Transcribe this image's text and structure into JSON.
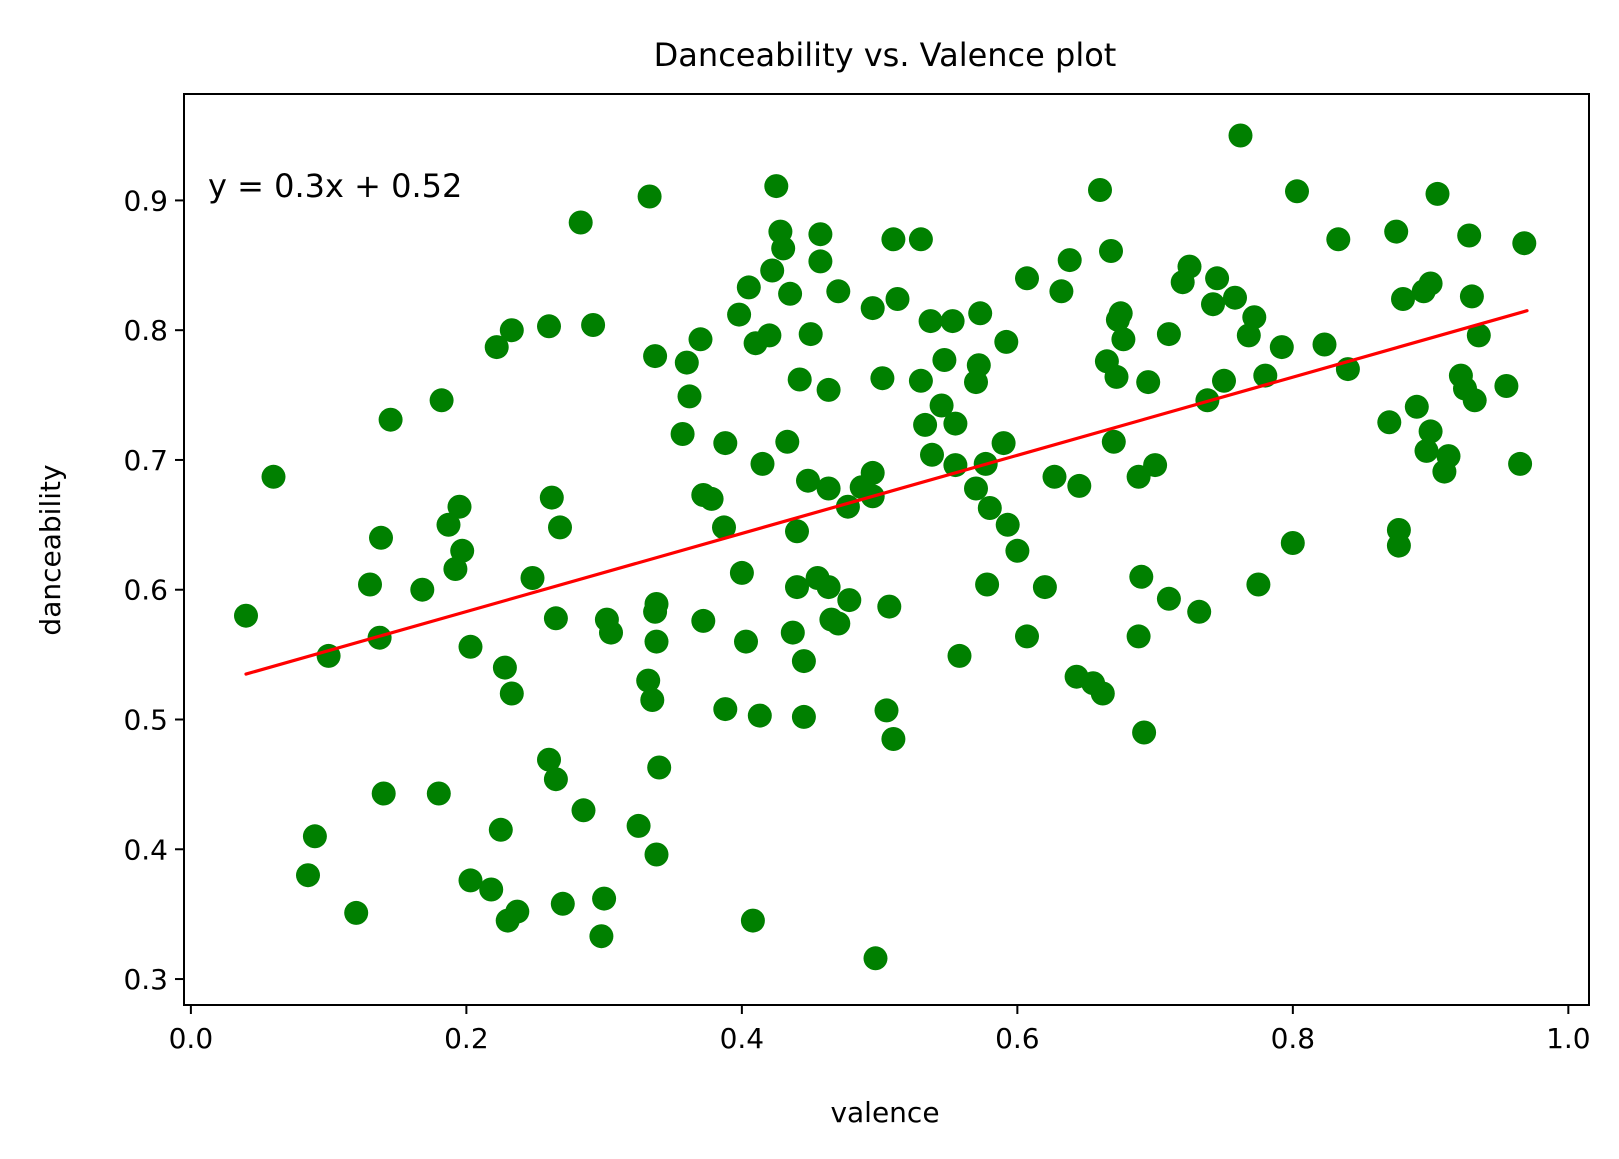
{
  "chart_data": {
    "type": "scatter",
    "title": "Danceability vs. Valence plot",
    "xlabel": "valence",
    "ylabel": "danceability",
    "xlim": [
      -0.005,
      1.015
    ],
    "ylim": [
      0.28,
      0.982
    ],
    "xticks": [
      0.0,
      0.2,
      0.4,
      0.6,
      0.8,
      1.0
    ],
    "xtick_labels": [
      "0.0",
      "0.2",
      "0.4",
      "0.6",
      "0.8",
      "1.0"
    ],
    "yticks": [
      0.3,
      0.4,
      0.5,
      0.6,
      0.7,
      0.8,
      0.9
    ],
    "ytick_labels": [
      "0.3",
      "0.4",
      "0.5",
      "0.6",
      "0.7",
      "0.8",
      "0.9"
    ],
    "grid": false,
    "colors": {
      "points": "#008000",
      "fit_line": "#ff0000",
      "annotation": "#ff0000"
    },
    "annotation": {
      "text": "y = 0.3x + 0.52"
    },
    "fit_line": {
      "x": [
        0.04,
        0.97
      ],
      "y": [
        0.535,
        0.815
      ]
    },
    "series": [
      {
        "points": [
          [
            0.04,
            0.58
          ],
          [
            0.06,
            0.687
          ],
          [
            0.085,
            0.38
          ],
          [
            0.09,
            0.41
          ],
          [
            0.1,
            0.549
          ],
          [
            0.12,
            0.351
          ],
          [
            0.13,
            0.604
          ],
          [
            0.137,
            0.563
          ],
          [
            0.138,
            0.64
          ],
          [
            0.14,
            0.443
          ],
          [
            0.145,
            0.731
          ],
          [
            0.168,
            0.6
          ],
          [
            0.18,
            0.443
          ],
          [
            0.182,
            0.746
          ],
          [
            0.187,
            0.65
          ],
          [
            0.192,
            0.616
          ],
          [
            0.195,
            0.664
          ],
          [
            0.197,
            0.63
          ],
          [
            0.203,
            0.556
          ],
          [
            0.203,
            0.376
          ],
          [
            0.218,
            0.369
          ],
          [
            0.222,
            0.787
          ],
          [
            0.225,
            0.415
          ],
          [
            0.228,
            0.54
          ],
          [
            0.23,
            0.345
          ],
          [
            0.233,
            0.52
          ],
          [
            0.233,
            0.8
          ],
          [
            0.237,
            0.352
          ],
          [
            0.248,
            0.609
          ],
          [
            0.26,
            0.469
          ],
          [
            0.26,
            0.803
          ],
          [
            0.262,
            0.671
          ],
          [
            0.265,
            0.454
          ],
          [
            0.265,
            0.578
          ],
          [
            0.268,
            0.648
          ],
          [
            0.27,
            0.358
          ],
          [
            0.283,
            0.883
          ],
          [
            0.285,
            0.43
          ],
          [
            0.292,
            0.804
          ],
          [
            0.298,
            0.333
          ],
          [
            0.3,
            0.362
          ],
          [
            0.302,
            0.577
          ],
          [
            0.305,
            0.567
          ],
          [
            0.325,
            0.418
          ],
          [
            0.332,
            0.53
          ],
          [
            0.333,
            0.903
          ],
          [
            0.335,
            0.515
          ],
          [
            0.337,
            0.78
          ],
          [
            0.337,
            0.583
          ],
          [
            0.338,
            0.589
          ],
          [
            0.338,
            0.56
          ],
          [
            0.338,
            0.396
          ],
          [
            0.34,
            0.463
          ],
          [
            0.357,
            0.72
          ],
          [
            0.36,
            0.775
          ],
          [
            0.362,
            0.749
          ],
          [
            0.37,
            0.793
          ],
          [
            0.372,
            0.673
          ],
          [
            0.372,
            0.576
          ],
          [
            0.378,
            0.67
          ],
          [
            0.387,
            0.648
          ],
          [
            0.388,
            0.713
          ],
          [
            0.388,
            0.508
          ],
          [
            0.398,
            0.812
          ],
          [
            0.4,
            0.613
          ],
          [
            0.403,
            0.56
          ],
          [
            0.405,
            0.833
          ],
          [
            0.408,
            0.345
          ],
          [
            0.41,
            0.79
          ],
          [
            0.413,
            0.503
          ],
          [
            0.415,
            0.697
          ],
          [
            0.42,
            0.796
          ],
          [
            0.422,
            0.846
          ],
          [
            0.425,
            0.911
          ],
          [
            0.428,
            0.876
          ],
          [
            0.43,
            0.863
          ],
          [
            0.433,
            0.714
          ],
          [
            0.435,
            0.828
          ],
          [
            0.437,
            0.567
          ],
          [
            0.44,
            0.645
          ],
          [
            0.44,
            0.602
          ],
          [
            0.442,
            0.762
          ],
          [
            0.445,
            0.545
          ],
          [
            0.445,
            0.502
          ],
          [
            0.448,
            0.684
          ],
          [
            0.45,
            0.797
          ],
          [
            0.455,
            0.609
          ],
          [
            0.457,
            0.853
          ],
          [
            0.457,
            0.874
          ],
          [
            0.463,
            0.754
          ],
          [
            0.463,
            0.678
          ],
          [
            0.463,
            0.602
          ],
          [
            0.465,
            0.577
          ],
          [
            0.47,
            0.574
          ],
          [
            0.47,
            0.83
          ],
          [
            0.477,
            0.664
          ],
          [
            0.478,
            0.592
          ],
          [
            0.487,
            0.679
          ],
          [
            0.495,
            0.817
          ],
          [
            0.495,
            0.69
          ],
          [
            0.495,
            0.672
          ],
          [
            0.497,
            0.316
          ],
          [
            0.502,
            0.763
          ],
          [
            0.505,
            0.507
          ],
          [
            0.507,
            0.587
          ],
          [
            0.51,
            0.485
          ],
          [
            0.51,
            0.87
          ],
          [
            0.513,
            0.824
          ],
          [
            0.53,
            0.87
          ],
          [
            0.53,
            0.761
          ],
          [
            0.533,
            0.727
          ],
          [
            0.537,
            0.807
          ],
          [
            0.538,
            0.704
          ],
          [
            0.545,
            0.742
          ],
          [
            0.547,
            0.777
          ],
          [
            0.553,
            0.807
          ],
          [
            0.555,
            0.696
          ],
          [
            0.555,
            0.728
          ],
          [
            0.558,
            0.549
          ],
          [
            0.57,
            0.678
          ],
          [
            0.57,
            0.76
          ],
          [
            0.572,
            0.773
          ],
          [
            0.573,
            0.813
          ],
          [
            0.577,
            0.697
          ],
          [
            0.578,
            0.604
          ],
          [
            0.58,
            0.663
          ],
          [
            0.59,
            0.713
          ],
          [
            0.592,
            0.791
          ],
          [
            0.593,
            0.65
          ],
          [
            0.6,
            0.63
          ],
          [
            0.607,
            0.84
          ],
          [
            0.607,
            0.564
          ],
          [
            0.62,
            0.602
          ],
          [
            0.627,
            0.687
          ],
          [
            0.632,
            0.83
          ],
          [
            0.638,
            0.854
          ],
          [
            0.643,
            0.533
          ],
          [
            0.645,
            0.68
          ],
          [
            0.655,
            0.528
          ],
          [
            0.66,
            0.908
          ],
          [
            0.662,
            0.52
          ],
          [
            0.665,
            0.776
          ],
          [
            0.668,
            0.861
          ],
          [
            0.67,
            0.714
          ],
          [
            0.672,
            0.764
          ],
          [
            0.673,
            0.808
          ],
          [
            0.675,
            0.813
          ],
          [
            0.677,
            0.793
          ],
          [
            0.688,
            0.687
          ],
          [
            0.688,
            0.564
          ],
          [
            0.69,
            0.61
          ],
          [
            0.692,
            0.49
          ],
          [
            0.695,
            0.76
          ],
          [
            0.7,
            0.696
          ],
          [
            0.71,
            0.593
          ],
          [
            0.71,
            0.797
          ],
          [
            0.72,
            0.837
          ],
          [
            0.725,
            0.849
          ],
          [
            0.732,
            0.583
          ],
          [
            0.738,
            0.746
          ],
          [
            0.742,
            0.82
          ],
          [
            0.745,
            0.84
          ],
          [
            0.75,
            0.761
          ],
          [
            0.758,
            0.825
          ],
          [
            0.762,
            0.95
          ],
          [
            0.768,
            0.796
          ],
          [
            0.772,
            0.81
          ],
          [
            0.775,
            0.604
          ],
          [
            0.78,
            0.765
          ],
          [
            0.792,
            0.787
          ],
          [
            0.8,
            0.636
          ],
          [
            0.803,
            0.907
          ],
          [
            0.823,
            0.789
          ],
          [
            0.833,
            0.87
          ],
          [
            0.84,
            0.77
          ],
          [
            0.87,
            0.729
          ],
          [
            0.875,
            0.876
          ],
          [
            0.877,
            0.646
          ],
          [
            0.877,
            0.634
          ],
          [
            0.88,
            0.824
          ],
          [
            0.89,
            0.741
          ],
          [
            0.895,
            0.83
          ],
          [
            0.897,
            0.707
          ],
          [
            0.9,
            0.836
          ],
          [
            0.9,
            0.722
          ],
          [
            0.905,
            0.905
          ],
          [
            0.91,
            0.691
          ],
          [
            0.913,
            0.703
          ],
          [
            0.922,
            0.765
          ],
          [
            0.925,
            0.755
          ],
          [
            0.928,
            0.873
          ],
          [
            0.93,
            0.826
          ],
          [
            0.932,
            0.746
          ],
          [
            0.935,
            0.796
          ],
          [
            0.955,
            0.757
          ],
          [
            0.965,
            0.697
          ],
          [
            0.968,
            0.867
          ]
        ]
      }
    ]
  }
}
